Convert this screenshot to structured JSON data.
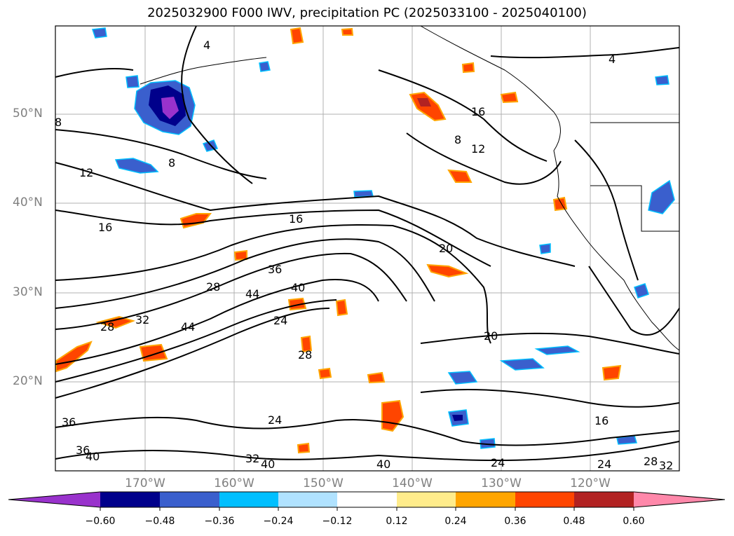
{
  "title": "2025032900 F000 IWV, precipitation PC (2025033100 - 2025040100)",
  "lat_labels": [
    "50°N",
    "40°N",
    "30°N",
    "20°N"
  ],
  "lon_labels": [
    "170°W",
    "160°W",
    "150°W",
    "140°W",
    "130°W",
    "120°W"
  ],
  "colorbar": {
    "ticks": [
      "−0.60",
      "−0.48",
      "−0.36",
      "−0.24",
      "−0.12",
      "0.12",
      "0.24",
      "0.36",
      "0.48",
      "0.60"
    ],
    "colors": [
      "#9932cc",
      "#00008b",
      "#3a5fcd",
      "#00bfff",
      "#b0e2ff",
      "#ffffff",
      "#ffec8b",
      "#ffa500",
      "#ff4500",
      "#b22222",
      "#ff88aa"
    ]
  },
  "contour_labels": [
    "4",
    "8",
    "12",
    "16",
    "20",
    "24",
    "28",
    "32",
    "36",
    "40",
    "44"
  ],
  "map_colors": {
    "contour": "#000000",
    "grid": "#b0b0b0",
    "neg_strong": "#00008b",
    "neg_mid": "#3a5fcd",
    "neg_light": "#00bfff",
    "neg_max": "#9932cc",
    "pos_light": "#ffec8b",
    "pos_mid": "#ffa500",
    "pos_strong": "#ff4500",
    "pos_max": "#b22222"
  }
}
